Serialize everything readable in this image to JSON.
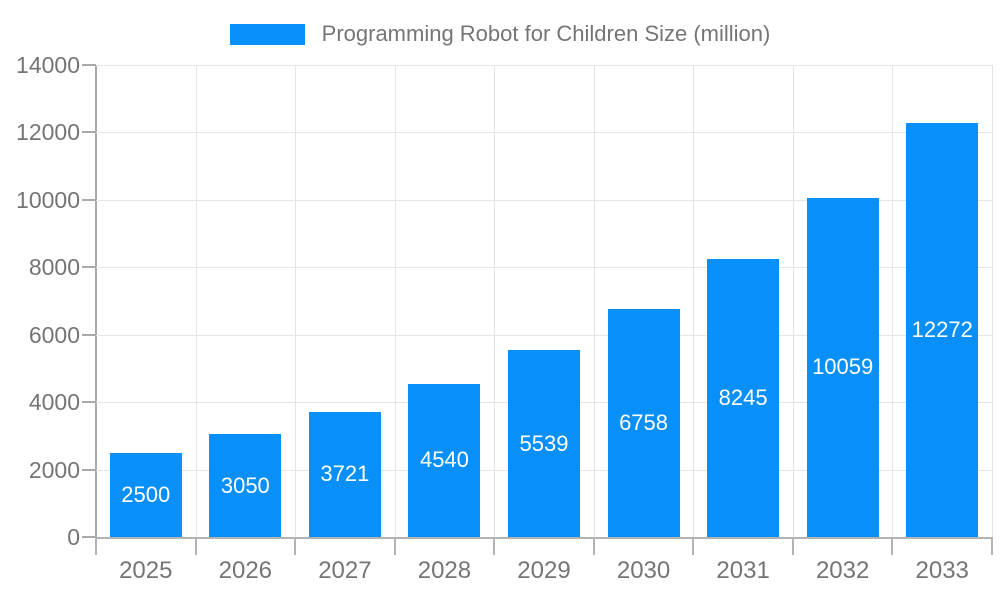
{
  "legend": {
    "label": "Programming Robot for Children Size (million)"
  },
  "chart_data": {
    "type": "bar",
    "title": "Programming Robot for Children Size (million)",
    "series_name": "Programming Robot for Children Size (million)",
    "categories": [
      "2025",
      "2026",
      "2027",
      "2028",
      "2029",
      "2030",
      "2031",
      "2032",
      "2033"
    ],
    "values": [
      2500,
      3050,
      3721,
      4540,
      5539,
      6758,
      8245,
      10059,
      12272
    ],
    "value_labels": [
      "2500",
      "3050",
      "3721",
      "4540",
      "5539",
      "6758",
      "8245",
      "10059",
      "12272"
    ],
    "xlabel": "",
    "ylabel": "",
    "ylim": [
      0,
      14000
    ],
    "ytick_step": 2000,
    "ytick_labels": [
      "0",
      "2000",
      "4000",
      "6000",
      "8000",
      "10000",
      "12000",
      "14000"
    ],
    "grid": true,
    "legend_position": "top-center",
    "bar_color": "#0890f8",
    "value_label_color": "#ffffff",
    "axis_text_color": "#757575",
    "grid_color": "#e4e4e4",
    "axis_line_color": "#aaaaaa"
  }
}
